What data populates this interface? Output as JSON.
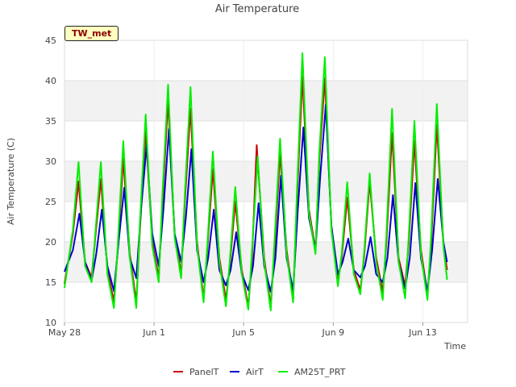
{
  "chart_data": {
    "type": "line",
    "title": "Air Temperature",
    "xlabel": "Time",
    "ylabel": "Air Temperature (C)",
    "site_label": "TW_met",
    "ylim": [
      10,
      45
    ],
    "yticks": [
      10,
      15,
      20,
      25,
      30,
      35,
      40,
      45
    ],
    "xlim": [
      "2024-05-28",
      "2024-06-15"
    ],
    "xticks": [
      {
        "date": "2024-05-28",
        "label": "May 28"
      },
      {
        "date": "2024-06-01",
        "label": "Jun 1"
      },
      {
        "date": "2024-06-05",
        "label": "Jun 5"
      },
      {
        "date": "2024-06-09",
        "label": "Jun 9"
      },
      {
        "date": "2024-06-13",
        "label": "Jun 13"
      }
    ],
    "grid": true,
    "legend_position": "bottom",
    "series": [
      {
        "name": "PanelT",
        "color": "#cc0000",
        "values": [
          [
            "2024-05-28 00:00",
            14.8
          ],
          [
            "2024-05-28 09:00",
            21.0
          ],
          [
            "2024-05-28 15:00",
            27.5
          ],
          [
            "2024-05-28 22:00",
            17.5
          ],
          [
            "2024-05-29 05:00",
            15.6
          ],
          [
            "2024-05-29 09:00",
            20.5
          ],
          [
            "2024-05-29 15:00",
            27.8
          ],
          [
            "2024-05-29 22:00",
            16.5
          ],
          [
            "2024-05-30 05:00",
            12.6
          ],
          [
            "2024-05-30 09:00",
            19.0
          ],
          [
            "2024-05-30 15:00",
            30.3
          ],
          [
            "2024-05-30 22:00",
            18.5
          ],
          [
            "2024-05-31 05:00",
            12.5
          ],
          [
            "2024-05-31 09:00",
            22.0
          ],
          [
            "2024-05-31 15:00",
            33.9
          ],
          [
            "2024-05-31 22:00",
            20.0
          ],
          [
            "2024-06-01 05:00",
            15.6
          ],
          [
            "2024-06-01 09:00",
            25.0
          ],
          [
            "2024-06-01 15:00",
            37.5
          ],
          [
            "2024-06-01 22:00",
            21.0
          ],
          [
            "2024-06-02 05:00",
            16.0
          ],
          [
            "2024-06-02 09:00",
            25.0
          ],
          [
            "2024-06-02 15:00",
            36.5
          ],
          [
            "2024-06-02 22:00",
            20.0
          ],
          [
            "2024-06-03 05:00",
            13.0
          ],
          [
            "2024-06-03 09:00",
            19.0
          ],
          [
            "2024-06-03 15:00",
            29.0
          ],
          [
            "2024-06-03 22:00",
            18.0
          ],
          [
            "2024-06-04 05:00",
            12.8
          ],
          [
            "2024-06-04 09:00",
            17.0
          ],
          [
            "2024-06-04 15:00",
            25.0
          ],
          [
            "2024-06-04 22:00",
            16.5
          ],
          [
            "2024-06-05 05:00",
            12.0
          ],
          [
            "2024-06-05 09:00",
            18.0
          ],
          [
            "2024-06-05 14:00",
            32.0
          ],
          [
            "2024-06-05 16:00",
            28.5
          ],
          [
            "2024-06-05 22:00",
            18.0
          ],
          [
            "2024-06-06 05:00",
            12.0
          ],
          [
            "2024-06-06 09:00",
            19.0
          ],
          [
            "2024-06-06 15:00",
            31.0
          ],
          [
            "2024-06-06 22:00",
            19.0
          ],
          [
            "2024-06-07 05:00",
            13.0
          ],
          [
            "2024-06-07 09:00",
            25.0
          ],
          [
            "2024-06-07 15:00",
            40.5
          ],
          [
            "2024-06-07 22:00",
            24.0
          ],
          [
            "2024-06-08 05:00",
            19.0
          ],
          [
            "2024-06-08 09:00",
            30.0
          ],
          [
            "2024-06-08 15:00",
            40.3
          ],
          [
            "2024-06-08 22:00",
            22.0
          ],
          [
            "2024-06-09 05:00",
            15.0
          ],
          [
            "2024-06-09 09:00",
            18.0
          ],
          [
            "2024-06-09 15:00",
            25.5
          ],
          [
            "2024-06-09 22:00",
            16.5
          ],
          [
            "2024-06-10 05:00",
            14.0
          ],
          [
            "2024-06-10 09:00",
            18.0
          ],
          [
            "2024-06-10 15:00",
            27.5
          ],
          [
            "2024-06-10 22:00",
            18.0
          ],
          [
            "2024-06-11 05:00",
            13.8
          ],
          [
            "2024-06-11 09:00",
            20.0
          ],
          [
            "2024-06-11 15:00",
            33.5
          ],
          [
            "2024-06-11 22:00",
            18.0
          ],
          [
            "2024-06-12 05:00",
            14.5
          ],
          [
            "2024-06-12 09:00",
            20.0
          ],
          [
            "2024-06-12 15:00",
            32.5
          ],
          [
            "2024-06-12 22:00",
            19.0
          ],
          [
            "2024-06-13 05:00",
            13.5
          ],
          [
            "2024-06-13 09:00",
            20.0
          ],
          [
            "2024-06-13 15:00",
            34.5
          ],
          [
            "2024-06-13 22:00",
            20.0
          ],
          [
            "2024-06-14 02:00",
            16.5
          ]
        ]
      },
      {
        "name": "AirT",
        "color": "#0000cc",
        "values": [
          [
            "2024-05-28 00:00",
            16.3
          ],
          [
            "2024-05-28 09:00",
            19.0
          ],
          [
            "2024-05-28 16:00",
            23.5
          ],
          [
            "2024-05-28 22:00",
            17.5
          ],
          [
            "2024-05-29 05:00",
            15.2
          ],
          [
            "2024-05-29 10:00",
            18.5
          ],
          [
            "2024-05-29 16:00",
            24.0
          ],
          [
            "2024-05-29 22:00",
            17.0
          ],
          [
            "2024-05-30 05:00",
            13.9
          ],
          [
            "2024-05-30 10:00",
            20.0
          ],
          [
            "2024-05-30 16:00",
            26.7
          ],
          [
            "2024-05-30 22:00",
            18.0
          ],
          [
            "2024-05-31 05:00",
            15.5
          ],
          [
            "2024-05-31 10:00",
            24.0
          ],
          [
            "2024-05-31 16:00",
            32.0
          ],
          [
            "2024-05-31 22:00",
            21.0
          ],
          [
            "2024-06-01 05:00",
            17.0
          ],
          [
            "2024-06-01 10:00",
            24.0
          ],
          [
            "2024-06-01 16:00",
            34.0
          ],
          [
            "2024-06-01 22:00",
            21.0
          ],
          [
            "2024-06-02 05:00",
            17.5
          ],
          [
            "2024-06-02 10:00",
            23.0
          ],
          [
            "2024-06-02 16:00",
            31.5
          ],
          [
            "2024-06-02 22:00",
            19.0
          ],
          [
            "2024-06-03 05:00",
            15.0
          ],
          [
            "2024-06-03 10:00",
            18.0
          ],
          [
            "2024-06-03 16:00",
            24.0
          ],
          [
            "2024-06-03 22:00",
            16.5
          ],
          [
            "2024-06-04 05:00",
            14.6
          ],
          [
            "2024-06-04 10:00",
            16.5
          ],
          [
            "2024-06-04 16:00",
            21.2
          ],
          [
            "2024-06-04 22:00",
            16.0
          ],
          [
            "2024-06-05 05:00",
            14.0
          ],
          [
            "2024-06-05 10:00",
            17.0
          ],
          [
            "2024-06-05 16:00",
            24.8
          ],
          [
            "2024-06-05 22:00",
            17.0
          ],
          [
            "2024-06-06 05:00",
            13.8
          ],
          [
            "2024-06-06 10:00",
            18.0
          ],
          [
            "2024-06-06 16:00",
            28.2
          ],
          [
            "2024-06-06 22:00",
            18.0
          ],
          [
            "2024-06-07 05:00",
            14.0
          ],
          [
            "2024-06-07 10:00",
            24.0
          ],
          [
            "2024-06-07 16:00",
            34.2
          ],
          [
            "2024-06-07 22:00",
            23.0
          ],
          [
            "2024-06-08 05:00",
            19.0
          ],
          [
            "2024-06-08 10:00",
            28.0
          ],
          [
            "2024-06-08 16:00",
            37.0
          ],
          [
            "2024-06-08 22:00",
            22.0
          ],
          [
            "2024-06-09 05:00",
            16.0
          ],
          [
            "2024-06-09 10:00",
            17.5
          ],
          [
            "2024-06-09 16:00",
            20.4
          ],
          [
            "2024-06-09 22:00",
            16.5
          ],
          [
            "2024-06-10 05:00",
            15.6
          ],
          [
            "2024-06-10 10:00",
            17.0
          ],
          [
            "2024-06-10 16:00",
            20.6
          ],
          [
            "2024-06-10 22:00",
            16.0
          ],
          [
            "2024-06-11 05:00",
            15.0
          ],
          [
            "2024-06-11 10:00",
            18.0
          ],
          [
            "2024-06-11 16:00",
            25.8
          ],
          [
            "2024-06-11 22:00",
            17.5
          ],
          [
            "2024-06-12 05:00",
            14.2
          ],
          [
            "2024-06-12 10:00",
            18.0
          ],
          [
            "2024-06-12 16:00",
            27.3
          ],
          [
            "2024-06-12 22:00",
            18.0
          ],
          [
            "2024-06-13 05:00",
            13.9
          ],
          [
            "2024-06-13 10:00",
            19.0
          ],
          [
            "2024-06-13 16:00",
            27.8
          ],
          [
            "2024-06-13 22:00",
            20.0
          ],
          [
            "2024-06-14 02:00",
            17.5
          ]
        ]
      },
      {
        "name": "AM25T_PRT",
        "color": "#00ee00",
        "values": [
          [
            "2024-05-28 00:00",
            14.3
          ],
          [
            "2024-05-28 09:00",
            21.5
          ],
          [
            "2024-05-28 15:00",
            29.9
          ],
          [
            "2024-05-28 22:00",
            17.0
          ],
          [
            "2024-05-29 05:00",
            15.0
          ],
          [
            "2024-05-29 09:00",
            21.0
          ],
          [
            "2024-05-29 15:00",
            29.9
          ],
          [
            "2024-05-29 22:00",
            16.0
          ],
          [
            "2024-05-30 05:00",
            11.8
          ],
          [
            "2024-05-30 09:00",
            19.5
          ],
          [
            "2024-05-30 15:00",
            32.5
          ],
          [
            "2024-05-30 22:00",
            18.0
          ],
          [
            "2024-05-31 05:00",
            11.8
          ],
          [
            "2024-05-31 09:00",
            23.0
          ],
          [
            "2024-05-31 15:00",
            35.8
          ],
          [
            "2024-05-31 22:00",
            19.5
          ],
          [
            "2024-06-01 05:00",
            15.0
          ],
          [
            "2024-06-01 09:00",
            26.0
          ],
          [
            "2024-06-01 15:00",
            39.5
          ],
          [
            "2024-06-01 22:00",
            20.5
          ],
          [
            "2024-06-02 05:00",
            15.5
          ],
          [
            "2024-06-02 09:00",
            26.0
          ],
          [
            "2024-06-02 15:00",
            39.2
          ],
          [
            "2024-06-02 22:00",
            19.5
          ],
          [
            "2024-06-03 05:00",
            12.5
          ],
          [
            "2024-06-03 09:00",
            19.5
          ],
          [
            "2024-06-03 15:00",
            31.2
          ],
          [
            "2024-06-03 22:00",
            17.5
          ],
          [
            "2024-06-04 05:00",
            12.0
          ],
          [
            "2024-06-04 09:00",
            17.5
          ],
          [
            "2024-06-04 15:00",
            26.8
          ],
          [
            "2024-06-04 22:00",
            16.0
          ],
          [
            "2024-06-05 05:00",
            11.6
          ],
          [
            "2024-06-05 09:00",
            19.0
          ],
          [
            "2024-06-05 15:00",
            30.6
          ],
          [
            "2024-06-05 22:00",
            17.5
          ],
          [
            "2024-06-06 05:00",
            11.5
          ],
          [
            "2024-06-06 09:00",
            20.0
          ],
          [
            "2024-06-06 15:00",
            32.8
          ],
          [
            "2024-06-06 22:00",
            18.5
          ],
          [
            "2024-06-07 05:00",
            12.5
          ],
          [
            "2024-06-07 09:00",
            26.0
          ],
          [
            "2024-06-07 15:00",
            43.4
          ],
          [
            "2024-06-07 22:00",
            23.5
          ],
          [
            "2024-06-08 05:00",
            18.5
          ],
          [
            "2024-06-08 09:00",
            31.0
          ],
          [
            "2024-06-08 15:00",
            42.9
          ],
          [
            "2024-06-08 22:00",
            21.5
          ],
          [
            "2024-06-09 05:00",
            14.5
          ],
          [
            "2024-06-09 09:00",
            18.5
          ],
          [
            "2024-06-09 15:00",
            27.4
          ],
          [
            "2024-06-09 22:00",
            16.0
          ],
          [
            "2024-06-10 05:00",
            13.5
          ],
          [
            "2024-06-10 09:00",
            18.5
          ],
          [
            "2024-06-10 15:00",
            28.5
          ],
          [
            "2024-06-10 22:00",
            17.5
          ],
          [
            "2024-06-11 05:00",
            12.8
          ],
          [
            "2024-06-11 09:00",
            21.0
          ],
          [
            "2024-06-11 15:00",
            36.5
          ],
          [
            "2024-06-11 22:00",
            17.5
          ],
          [
            "2024-06-12 05:00",
            13.0
          ],
          [
            "2024-06-12 09:00",
            21.0
          ],
          [
            "2024-06-12 15:00",
            35.0
          ],
          [
            "2024-06-12 22:00",
            18.5
          ],
          [
            "2024-06-13 05:00",
            12.8
          ],
          [
            "2024-06-13 09:00",
            21.0
          ],
          [
            "2024-06-13 15:00",
            37.1
          ],
          [
            "2024-06-13 22:00",
            19.5
          ],
          [
            "2024-06-14 02:00",
            15.3
          ]
        ]
      }
    ]
  }
}
